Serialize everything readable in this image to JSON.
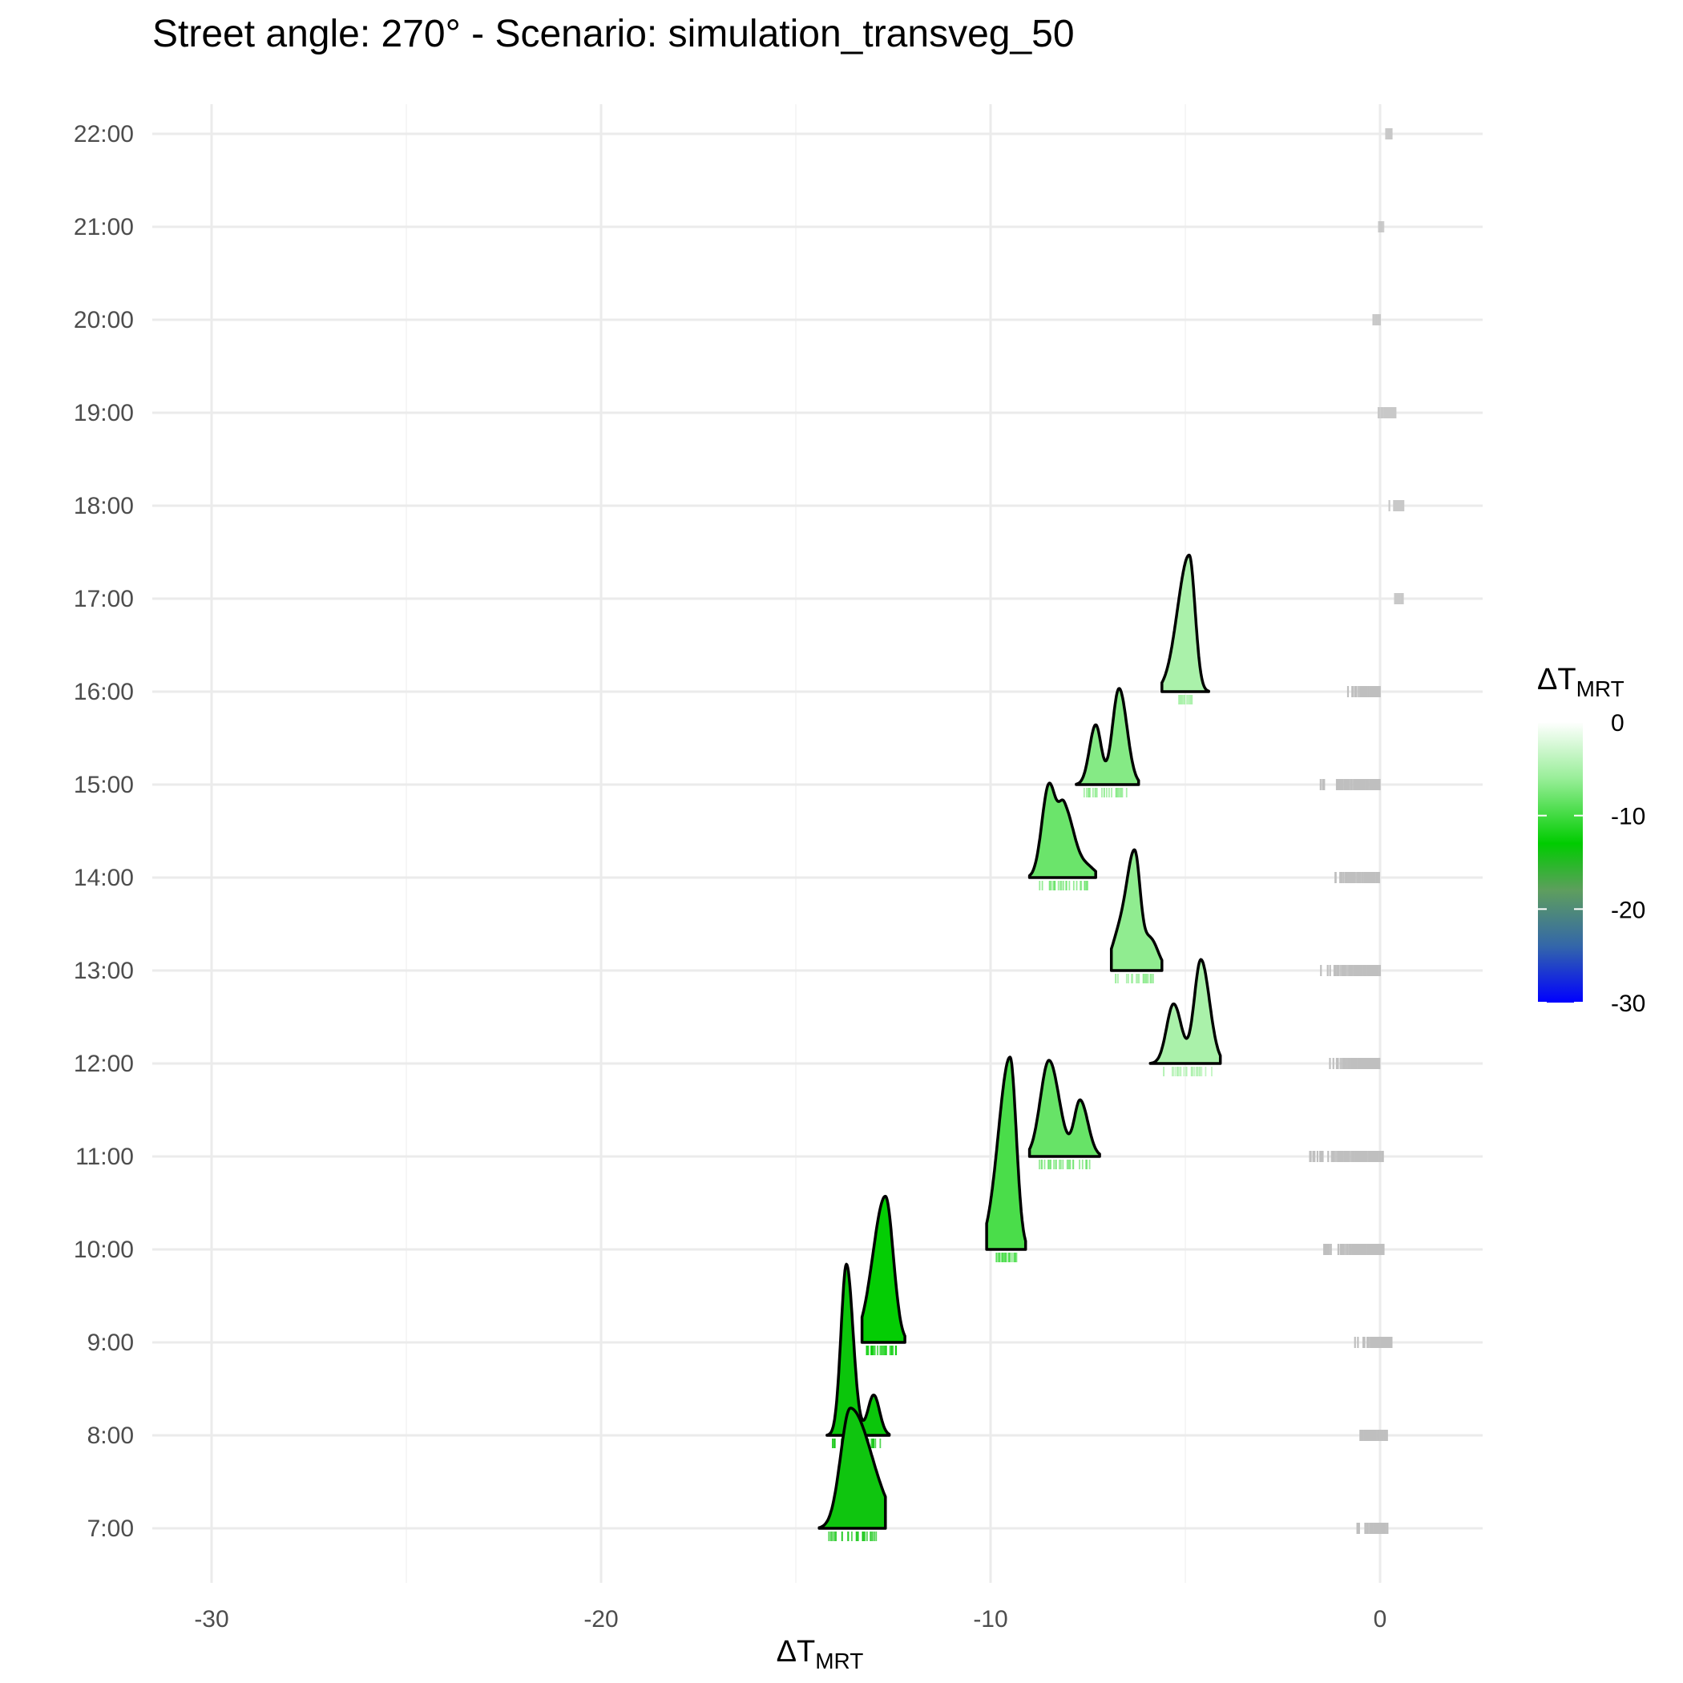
{
  "chart_data": {
    "type": "ridgeline",
    "title": "Street angle: 270° - Scenario: simulation_transveg_50",
    "xlabel_base": "ΔT",
    "xlabel_sub": "MRT",
    "ylabel": "",
    "xlim": [
      -31,
      2.5
    ],
    "x_ticks": [
      -30,
      -20,
      -10,
      0
    ],
    "x_tick_labels": [
      "-30",
      "-20",
      "-10",
      "0"
    ],
    "categories": [
      "7:00",
      "8:00",
      "9:00",
      "10:00",
      "11:00",
      "12:00",
      "13:00",
      "14:00",
      "15:00",
      "16:00",
      "17:00",
      "18:00",
      "19:00",
      "20:00",
      "21:00",
      "22:00"
    ],
    "grid": true,
    "ridges": [
      {
        "hour": "7:00",
        "mean": -13.8,
        "peaks": [
          {
            "center": -13.6,
            "height": 1.25,
            "sigma_left": 0.25,
            "sigma_right": 0.55
          }
        ],
        "range": [
          -14.4,
          -12.7
        ],
        "rug_range": [
          -14.2,
          -12.9
        ]
      },
      {
        "hour": "8:00",
        "mean": -13.6,
        "peaks": [
          {
            "center": -13.7,
            "height": 1.78,
            "sigma_left": 0.14,
            "sigma_right": 0.17
          },
          {
            "center": -13.0,
            "height": 0.42,
            "sigma_left": 0.15,
            "sigma_right": 0.15
          }
        ],
        "range": [
          -14.2,
          -12.6
        ],
        "rug_range": [
          -14.1,
          -12.8
        ]
      },
      {
        "hour": "9:00",
        "mean": -12.8,
        "peaks": [
          {
            "center": -12.7,
            "height": 1.52,
            "sigma_left": 0.32,
            "sigma_right": 0.2
          }
        ],
        "range": [
          -13.3,
          -12.2
        ],
        "rug_range": [
          -13.2,
          -12.4
        ]
      },
      {
        "hour": "10:00",
        "mean": -9.6,
        "peaks": [
          {
            "center": -9.5,
            "height": 2.0,
            "sigma_left": 0.3,
            "sigma_right": 0.16
          }
        ],
        "range": [
          -10.1,
          -9.1
        ],
        "rug_range": [
          -9.9,
          -9.3
        ]
      },
      {
        "hour": "11:00",
        "mean": -8.3,
        "peaks": [
          {
            "center": -8.5,
            "height": 1.0,
            "sigma_left": 0.22,
            "sigma_right": 0.26
          },
          {
            "center": -7.7,
            "height": 0.58,
            "sigma_left": 0.15,
            "sigma_right": 0.2
          }
        ],
        "range": [
          -9.0,
          -7.2
        ],
        "rug_range": [
          -8.8,
          -7.4
        ]
      },
      {
        "hour": "12:00",
        "mean": -5.0,
        "peaks": [
          {
            "center": -5.3,
            "height": 0.62,
            "sigma_left": 0.18,
            "sigma_right": 0.2
          },
          {
            "center": -4.6,
            "height": 1.08,
            "sigma_left": 0.17,
            "sigma_right": 0.22
          }
        ],
        "range": [
          -5.9,
          -4.1
        ],
        "rug_range": [
          -5.6,
          -4.3
        ]
      },
      {
        "hour": "13:00",
        "mean": -6.4,
        "peaks": [
          {
            "center": -6.3,
            "height": 1.18,
            "sigma_left": 0.2,
            "sigma_right": 0.14
          },
          {
            "center": -6.7,
            "height": 0.35,
            "sigma_left": 0.2,
            "sigma_right": 0.2
          },
          {
            "center": -5.9,
            "height": 0.33,
            "sigma_left": 0.18,
            "sigma_right": 0.2
          }
        ],
        "range": [
          -6.9,
          -5.6
        ],
        "rug_range": [
          -6.8,
          -5.8
        ]
      },
      {
        "hour": "14:00",
        "mean": -8.1,
        "peaks": [
          {
            "center": -8.5,
            "height": 0.96,
            "sigma_left": 0.18,
            "sigma_right": 0.18
          },
          {
            "center": -8.1,
            "height": 0.7,
            "sigma_left": 0.15,
            "sigma_right": 0.25
          },
          {
            "center": -7.5,
            "height": 0.1,
            "sigma_left": 0.2,
            "sigma_right": 0.2
          }
        ],
        "range": [
          -9.0,
          -7.3
        ],
        "rug_range": [
          -8.8,
          -7.5
        ]
      },
      {
        "hour": "15:00",
        "mean": -6.9,
        "peaks": [
          {
            "center": -7.3,
            "height": 0.62,
            "sigma_left": 0.16,
            "sigma_right": 0.14
          },
          {
            "center": -6.7,
            "height": 1.0,
            "sigma_left": 0.17,
            "sigma_right": 0.2
          }
        ],
        "range": [
          -7.8,
          -6.2
        ],
        "rug_range": [
          -7.6,
          -6.4
        ]
      },
      {
        "hour": "16:00",
        "mean": -5.0,
        "peaks": [
          {
            "center": -4.9,
            "height": 1.42,
            "sigma_left": 0.3,
            "sigma_right": 0.15
          }
        ],
        "range": [
          -5.6,
          -4.4
        ],
        "rug_range": [
          -5.2,
          -4.8
        ]
      }
    ],
    "rugs": [
      {
        "hour": "7:00",
        "color": "#bfbfbf",
        "range": [
          -0.7,
          0.2
        ]
      },
      {
        "hour": "8:00",
        "color": "#bfbfbf",
        "range": [
          -0.8,
          0.2
        ]
      },
      {
        "hour": "9:00",
        "color": "#bfbfbf",
        "range": [
          -0.7,
          0.3
        ]
      },
      {
        "hour": "10:00",
        "color": "#bfbfbf",
        "range": [
          -1.6,
          0.1
        ]
      },
      {
        "hour": "11:00",
        "color": "#bfbfbf",
        "range": [
          -2.0,
          0.1
        ]
      },
      {
        "hour": "12:00",
        "color": "#bfbfbf",
        "range": [
          -1.6,
          0.0
        ]
      },
      {
        "hour": "13:00",
        "color": "#bfbfbf",
        "range": [
          -1.6,
          0.0
        ]
      },
      {
        "hour": "14:00",
        "color": "#bfbfbf",
        "range": [
          -1.3,
          0.0
        ]
      },
      {
        "hour": "15:00",
        "color": "#bfbfbf",
        "range": [
          -1.6,
          0.0
        ]
      },
      {
        "hour": "16:00",
        "color": "#bfbfbf",
        "range": [
          -0.9,
          0.0
        ]
      },
      {
        "hour": "17:00",
        "color": "#c8c8c8",
        "range": [
          0.3,
          0.6
        ]
      },
      {
        "hour": "18:00",
        "color": "#c8c8c8",
        "range": [
          0.2,
          0.6
        ]
      },
      {
        "hour": "19:00",
        "color": "#c8c8c8",
        "range": [
          -0.1,
          0.4
        ]
      },
      {
        "hour": "20:00",
        "color": "#c8c8c8",
        "range": [
          -0.2,
          0.0
        ]
      },
      {
        "hour": "21:00",
        "color": "#c8c8c8",
        "range": [
          -0.05,
          0.05
        ]
      },
      {
        "hour": "22:00",
        "color": "#c8c8c8",
        "range": [
          0.1,
          0.3
        ]
      }
    ],
    "legend": {
      "title_base": "ΔT",
      "title_sub": "MRT",
      "position": "right",
      "range": [
        -30,
        0
      ],
      "ticks": [
        0,
        -10,
        -20,
        -30
      ],
      "tick_labels": [
        "0",
        "-10",
        "-20",
        "-30"
      ],
      "colors": [
        "#ffffff",
        "#99ee99",
        "#00cc00",
        "#5e9e5e",
        "#3366aa",
        "#0000ff"
      ],
      "color_stops": [
        0,
        -6,
        -13,
        -18,
        -24,
        -30
      ]
    }
  }
}
